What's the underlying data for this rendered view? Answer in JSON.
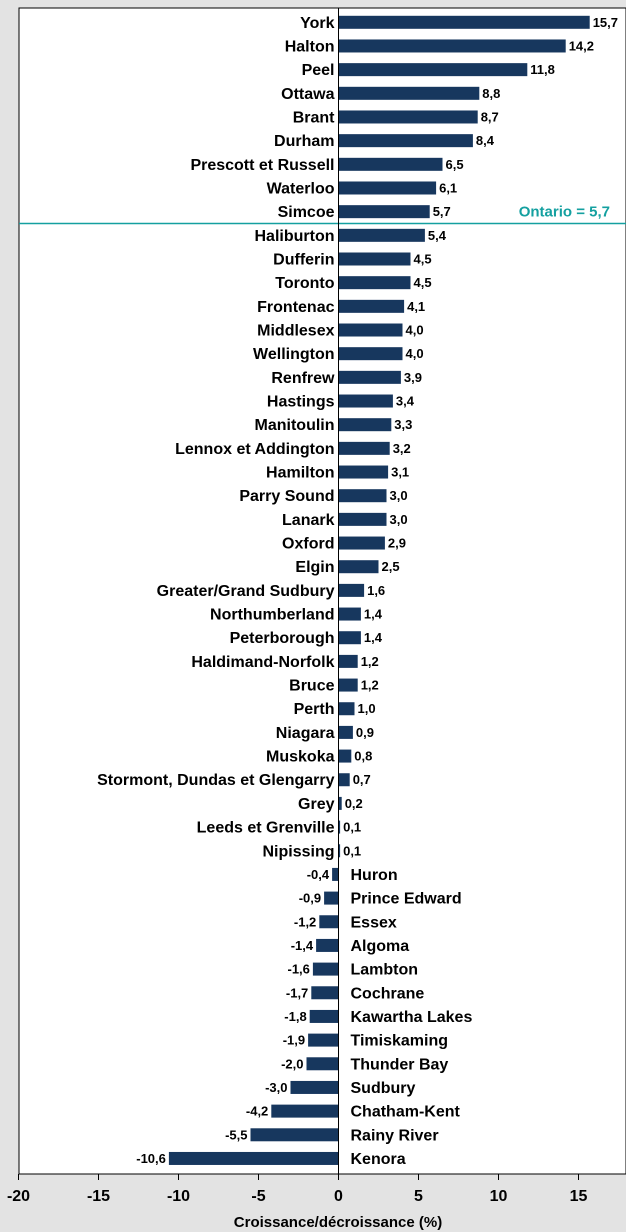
{
  "colors": {
    "bar": "#17375e",
    "reference_line": "#14a0a0",
    "plot_background": "#ffffff",
    "page_background": "#e3e3e3"
  },
  "chart_data": {
    "type": "bar",
    "orientation": "horizontal",
    "xlabel": "Croissance/décroissance (%)",
    "xlim": [
      -20,
      18
    ],
    "xticks": [
      -20,
      -15,
      -10,
      -5,
      0,
      5,
      10,
      15
    ],
    "grid": false,
    "reference_line": {
      "label": "Ontario = 5,7",
      "value": 5.7
    },
    "categories": [
      "York",
      "Halton",
      "Peel",
      "Ottawa",
      "Brant",
      "Durham",
      "Prescott et Russell",
      "Waterloo",
      "Simcoe",
      "Haliburton",
      "Dufferin",
      "Toronto",
      "Frontenac",
      "Middlesex",
      "Wellington",
      "Renfrew",
      "Hastings",
      "Manitoulin",
      "Lennox et Addington",
      "Hamilton",
      "Parry Sound",
      "Lanark",
      "Oxford",
      "Elgin",
      "Greater/Grand Sudbury",
      "Northumberland",
      "Peterborough",
      "Haldimand-Norfolk",
      "Bruce",
      "Perth",
      "Niagara",
      "Muskoka",
      "Stormont, Dundas et Glengarry",
      "Grey",
      "Leeds et Grenville",
      "Nipissing",
      "Huron",
      "Prince Edward",
      "Essex",
      "Algoma",
      "Lambton",
      "Cochrane",
      "Kawartha Lakes",
      "Timiskaming",
      "Thunder Bay",
      "Sudbury",
      "Chatham-Kent",
      "Rainy River",
      "Kenora"
    ],
    "values": [
      15.7,
      14.2,
      11.8,
      8.8,
      8.7,
      8.4,
      6.5,
      6.1,
      5.7,
      5.4,
      4.5,
      4.5,
      4.1,
      4.0,
      4.0,
      3.9,
      3.4,
      3.3,
      3.2,
      3.1,
      3.0,
      3.0,
      2.9,
      2.5,
      1.6,
      1.4,
      1.4,
      1.2,
      1.2,
      1.0,
      0.9,
      0.8,
      0.7,
      0.2,
      0.1,
      0.1,
      -0.4,
      -0.9,
      -1.2,
      -1.4,
      -1.6,
      -1.7,
      -1.8,
      -1.9,
      -2.0,
      -3.0,
      -4.2,
      -5.5,
      -10.6
    ],
    "value_labels": [
      "15,7",
      "14,2",
      "11,8",
      "8,8",
      "8,7",
      "8,4",
      "6,5",
      "6,1",
      "5,7",
      "5,4",
      "4,5",
      "4,5",
      "4,1",
      "4,0",
      "4,0",
      "3,9",
      "3,4",
      "3,3",
      "3,2",
      "3,1",
      "3,0",
      "3,0",
      "2,9",
      "2,5",
      "1,6",
      "1,4",
      "1,4",
      "1,2",
      "1,2",
      "1,0",
      "0,9",
      "0,8",
      "0,7",
      "0,2",
      "0,1",
      "0,1",
      "-0,4",
      "-0,9",
      "-1,2",
      "-1,4",
      "-1,6",
      "-1,7",
      "-1,8",
      "-1,9",
      "-2,0",
      "-3,0",
      "-4,2",
      "-5,5",
      "-10,6"
    ]
  }
}
